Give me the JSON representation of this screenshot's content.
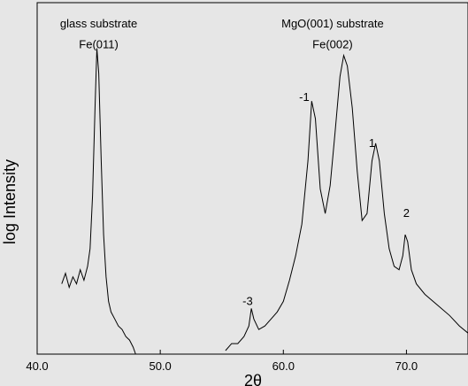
{
  "chart_data": {
    "type": "line",
    "xlabel": "2θ",
    "ylabel": "log Intensity",
    "xlim": [
      40.0,
      75.0
    ],
    "ylim": [
      0,
      1
    ],
    "xticks": [
      40.0,
      50.0,
      60.0,
      70.0
    ],
    "xtick_labels": [
      "40.0",
      "50.0",
      "60.0",
      "70.0"
    ],
    "grid": false,
    "annotations": [
      {
        "text": "glass substrate",
        "x": 45.0,
        "y": 0.93
      },
      {
        "text": "Fe(011)",
        "x": 45.0,
        "y": 0.87
      },
      {
        "text": "MgO(001) substrate",
        "x": 64.0,
        "y": 0.93
      },
      {
        "text": "Fe(002)",
        "x": 64.0,
        "y": 0.87
      },
      {
        "text": "-1",
        "x": 61.7,
        "y": 0.72
      },
      {
        "text": "1",
        "x": 67.2,
        "y": 0.59
      },
      {
        "text": "2",
        "x": 70.0,
        "y": 0.39
      },
      {
        "text": "-3",
        "x": 57.1,
        "y": 0.14
      }
    ],
    "series": [
      {
        "values": [
          [
            42.0,
            0.2
          ],
          [
            42.3,
            0.23
          ],
          [
            42.6,
            0.19
          ],
          [
            42.9,
            0.22
          ],
          [
            43.2,
            0.2
          ],
          [
            43.5,
            0.24
          ],
          [
            43.8,
            0.21
          ],
          [
            44.1,
            0.25
          ],
          [
            44.3,
            0.3
          ],
          [
            44.5,
            0.45
          ],
          [
            44.7,
            0.7
          ],
          [
            44.85,
            0.87
          ],
          [
            45.0,
            0.8
          ],
          [
            45.2,
            0.55
          ],
          [
            45.4,
            0.34
          ],
          [
            45.6,
            0.22
          ],
          [
            45.8,
            0.15
          ],
          [
            46.0,
            0.12
          ],
          [
            46.3,
            0.1
          ],
          [
            46.6,
            0.08
          ],
          [
            46.9,
            0.07
          ],
          [
            47.2,
            0.05
          ],
          [
            47.5,
            0.04
          ],
          [
            47.8,
            0.02
          ],
          [
            48.0,
            0.0
          ]
        ],
        "color": "#000000"
      },
      {
        "values": [
          [
            55.3,
            0.01
          ],
          [
            55.8,
            0.03
          ],
          [
            56.3,
            0.03
          ],
          [
            56.8,
            0.05
          ],
          [
            57.2,
            0.08
          ],
          [
            57.4,
            0.13
          ],
          [
            57.6,
            0.1
          ],
          [
            58.0,
            0.07
          ],
          [
            58.5,
            0.08
          ],
          [
            59.0,
            0.1
          ],
          [
            59.5,
            0.12
          ],
          [
            60.0,
            0.15
          ],
          [
            60.5,
            0.21
          ],
          [
            61.0,
            0.28
          ],
          [
            61.5,
            0.37
          ],
          [
            62.0,
            0.55
          ],
          [
            62.3,
            0.72
          ],
          [
            62.6,
            0.67
          ],
          [
            63.0,
            0.47
          ],
          [
            63.4,
            0.4
          ],
          [
            63.8,
            0.48
          ],
          [
            64.2,
            0.63
          ],
          [
            64.6,
            0.79
          ],
          [
            64.9,
            0.85
          ],
          [
            65.2,
            0.82
          ],
          [
            65.6,
            0.7
          ],
          [
            66.0,
            0.52
          ],
          [
            66.4,
            0.38
          ],
          [
            66.8,
            0.4
          ],
          [
            67.2,
            0.55
          ],
          [
            67.5,
            0.6
          ],
          [
            67.8,
            0.55
          ],
          [
            68.2,
            0.4
          ],
          [
            68.6,
            0.3
          ],
          [
            69.0,
            0.25
          ],
          [
            69.4,
            0.24
          ],
          [
            69.7,
            0.28
          ],
          [
            69.9,
            0.34
          ],
          [
            70.1,
            0.32
          ],
          [
            70.4,
            0.24
          ],
          [
            70.8,
            0.2
          ],
          [
            71.5,
            0.17
          ],
          [
            72.5,
            0.14
          ],
          [
            73.5,
            0.11
          ],
          [
            74.3,
            0.08
          ],
          [
            75.0,
            0.06
          ]
        ],
        "color": "#000000"
      }
    ]
  }
}
